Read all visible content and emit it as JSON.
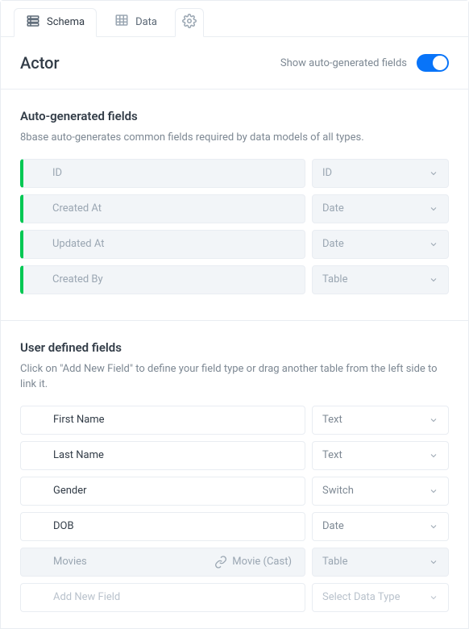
{
  "tabs": {
    "schema": "Schema",
    "data": "Data"
  },
  "header": {
    "title": "Actor",
    "toggle_label": "Show auto-generated fields"
  },
  "autogen": {
    "title": "Auto-generated fields",
    "desc": "8base auto-generates common fields required by data models of all types.",
    "accent": "#00c853",
    "fields": [
      {
        "name": "ID",
        "type": "ID"
      },
      {
        "name": "Created At",
        "type": "Date"
      },
      {
        "name": "Updated At",
        "type": "Date"
      },
      {
        "name": "Created By",
        "type": "Table"
      }
    ]
  },
  "user": {
    "title": "User defined fields",
    "desc": "Click on \"Add New Field\" to define your field type or drag another table from the left side to link it.",
    "fields": [
      {
        "name": "First Name",
        "type": "Text"
      },
      {
        "name": "Last Name",
        "type": "Text"
      },
      {
        "name": "Gender",
        "type": "Switch"
      },
      {
        "name": "DOB",
        "type": "Date"
      },
      {
        "name": "Movies",
        "type": "Table",
        "relation": "Movie (Cast)",
        "muted": true
      }
    ],
    "add_placeholder": "Add New Field",
    "type_placeholder": "Select Data Type"
  },
  "colors": {
    "primary": "#0874f9",
    "border": "#e9edf2",
    "text": "#323c47",
    "muted": "#7d8893",
    "faint": "#9aa6b2",
    "bg_muted": "#f2f5f8"
  }
}
